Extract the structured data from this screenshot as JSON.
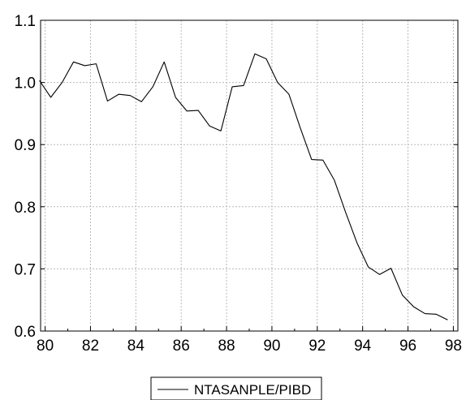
{
  "chart_data": {
    "type": "line",
    "title": "",
    "xlabel": "",
    "ylabel": "",
    "xlim": [
      1979.8,
      1998.2
    ],
    "ylim": [
      0.6,
      1.1
    ],
    "xticks": [
      "80",
      "82",
      "84",
      "86",
      "88",
      "90",
      "92",
      "94",
      "96",
      "98"
    ],
    "xtick_values": [
      1980,
      1982,
      1984,
      1986,
      1988,
      1990,
      1992,
      1994,
      1996,
      1998
    ],
    "yticks": [
      "0.6",
      "0.7",
      "0.8",
      "0.9",
      "1.0",
      "1.1"
    ],
    "ytick_values": [
      0.6,
      0.7,
      0.8,
      0.9,
      1.0,
      1.1
    ],
    "grid": true,
    "legend_position": "bottom-center",
    "series": [
      {
        "name": "NTASANPLE/PIBD",
        "color": "#000000",
        "x": [
          1979.75,
          1980.25,
          1980.75,
          1981.25,
          1981.75,
          1982.25,
          1982.75,
          1983.25,
          1983.75,
          1984.25,
          1984.75,
          1985.25,
          1985.75,
          1986.25,
          1986.75,
          1987.25,
          1987.75,
          1988.25,
          1988.75,
          1989.25,
          1989.75,
          1990.25,
          1990.75,
          1991.25,
          1991.75,
          1992.25,
          1992.75,
          1993.25,
          1993.75,
          1994.25,
          1994.75,
          1995.25,
          1995.75,
          1996.25,
          1996.75,
          1997.25,
          1997.75
        ],
        "y": [
          1.003,
          0.976,
          1.0,
          1.033,
          1.027,
          1.03,
          0.97,
          0.981,
          0.979,
          0.969,
          0.993,
          1.033,
          0.976,
          0.954,
          0.955,
          0.93,
          0.922,
          0.993,
          0.995,
          1.046,
          1.038,
          1.0,
          0.981,
          0.927,
          0.876,
          0.875,
          0.843,
          0.791,
          0.742,
          0.703,
          0.691,
          0.701,
          0.658,
          0.639,
          0.628,
          0.627,
          0.618
        ]
      }
    ]
  }
}
